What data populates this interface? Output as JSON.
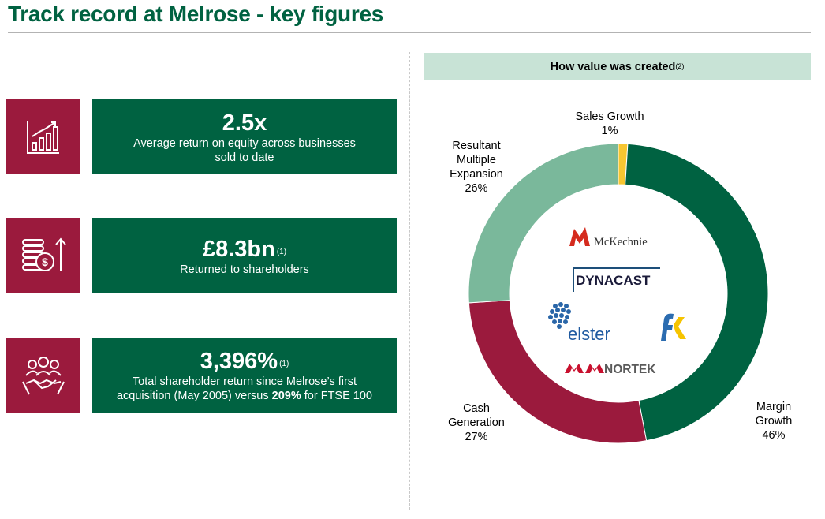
{
  "page": {
    "title": "Track record at Melrose - key figures"
  },
  "metrics": [
    {
      "value": "2.5x",
      "sup": "",
      "desc_lines": [
        "Average return on equity across businesses",
        "sold to date"
      ],
      "icon": "bar-chart-growth-icon"
    },
    {
      "value": "£8.3bn",
      "sup": "(1)",
      "desc_lines": [
        "Returned to shareholders"
      ],
      "icon": "coins-return-icon"
    },
    {
      "value": "3,396%",
      "sup": "(1)",
      "desc_line1": "Total shareholder return since Melrose’s first",
      "desc_line2_pre": "acquisition (May 2005) versus ",
      "desc_line2_bold": "209%",
      "desc_line2_post": " for FTSE 100",
      "icon": "handshake-team-icon"
    }
  ],
  "value_panel": {
    "title": "How value was created",
    "title_sup": "(2)"
  },
  "logos": {
    "mckechnie": "McKechnie",
    "dynacast": "DYNACAST",
    "elster": "elster",
    "nortek": "NORTEK"
  },
  "colors": {
    "brand_green": "#006241",
    "brand_red": "#9b1a3d",
    "light_green": "#7ab89b",
    "yellow": "#f7c631",
    "header_bg": "#c8e3d6"
  },
  "chart_data": {
    "type": "pie",
    "variant": "donut",
    "title": "How value was created",
    "slices": [
      {
        "name": "Sales Growth",
        "value": 1,
        "label": "1%",
        "color": "#f7c631",
        "label_lines": [
          "Sales Growth",
          "1%"
        ]
      },
      {
        "name": "Margin Growth",
        "value": 46,
        "label": "46%",
        "color": "#006241",
        "label_lines": [
          "Margin",
          "Growth",
          "46%"
        ]
      },
      {
        "name": "Cash Generation",
        "value": 27,
        "label": "27%",
        "color": "#9b1a3d",
        "label_lines": [
          "Cash",
          "Generation",
          "27%"
        ]
      },
      {
        "name": "Resultant Multiple Expansion",
        "value": 26,
        "label": "26%",
        "color": "#7ab89b",
        "label_lines": [
          "Resultant",
          "Multiple",
          "Expansion",
          "26%"
        ]
      }
    ]
  }
}
